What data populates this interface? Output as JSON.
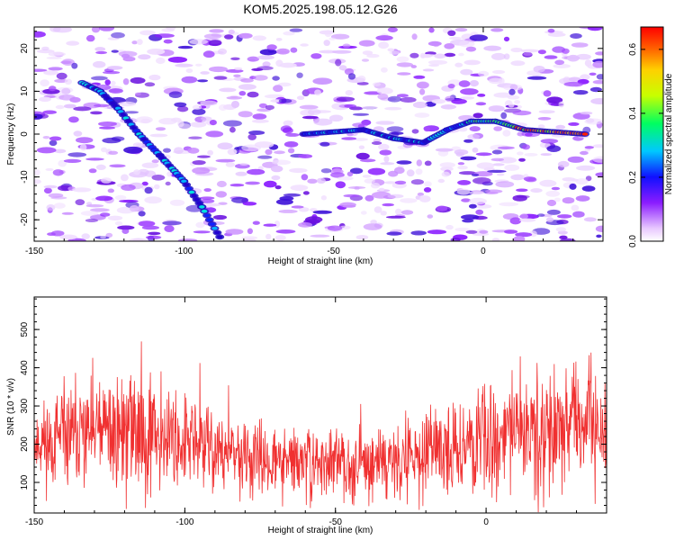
{
  "figure": {
    "title": "KOM5.2025.198.05.12.G26"
  },
  "chart_data": [
    {
      "type": "heatmap",
      "xlabel": "Height of straight line (km)",
      "ylabel": "Frequency (Hz)",
      "xlim": [
        -150,
        40
      ],
      "ylim": [
        -25,
        25
      ],
      "xticks": [
        -150,
        -100,
        -50,
        0
      ],
      "yticks": [
        -20,
        -10,
        0,
        10,
        20
      ],
      "colorbar": {
        "label": "Normalized spectral amplitude",
        "range": [
          0.0,
          0.67
        ],
        "ticks": [
          0.0,
          0.2,
          0.4,
          0.6
        ],
        "tick_labels": [
          "0.0",
          "0.2",
          "0.4",
          "0.6"
        ]
      },
      "ridge_trace": [
        {
          "x": -134,
          "y": 12
        },
        {
          "x": -128,
          "y": 10
        },
        {
          "x": -122,
          "y": 6
        },
        {
          "x": -115,
          "y": 0
        },
        {
          "x": -108,
          "y": -5
        },
        {
          "x": -100,
          "y": -11
        },
        {
          "x": -94,
          "y": -17
        },
        {
          "x": -88,
          "y": -24
        },
        {
          "x": -60,
          "y": 0
        },
        {
          "x": -40,
          "y": 1
        },
        {
          "x": -30,
          "y": -1
        },
        {
          "x": -20,
          "y": -2
        },
        {
          "x": -12,
          "y": 1
        },
        {
          "x": -4,
          "y": 3
        },
        {
          "x": 4,
          "y": 3
        },
        {
          "x": 14,
          "y": 1
        },
        {
          "x": 24,
          "y": 0.5
        },
        {
          "x": 34,
          "y": 0
        }
      ]
    },
    {
      "type": "line",
      "xlabel": "Height of straight line (km)",
      "ylabel": "SNR (10 * v/v)",
      "xlim": [
        -150,
        40
      ],
      "ylim": [
        20,
        585
      ],
      "xticks": [
        -150,
        -100,
        -50,
        0
      ],
      "yticks": [
        100,
        200,
        300,
        400,
        500
      ],
      "series": [
        {
          "color": "#f03030",
          "envelope": [
            {
              "x": -150,
              "mean": 200,
              "amp": 120
            },
            {
              "x": -130,
              "mean": 230,
              "amp": 170
            },
            {
              "x": -115,
              "mean": 240,
              "amp": 190
            },
            {
              "x": -100,
              "mean": 210,
              "amp": 140
            },
            {
              "x": -80,
              "mean": 160,
              "amp": 110
            },
            {
              "x": -60,
              "mean": 150,
              "amp": 100
            },
            {
              "x": -40,
              "mean": 150,
              "amp": 95
            },
            {
              "x": -20,
              "mean": 170,
              "amp": 110
            },
            {
              "x": 0,
              "mean": 220,
              "amp": 160
            },
            {
              "x": 20,
              "mean": 250,
              "amp": 190
            },
            {
              "x": 40,
              "mean": 240,
              "amp": 170
            }
          ]
        }
      ]
    }
  ]
}
